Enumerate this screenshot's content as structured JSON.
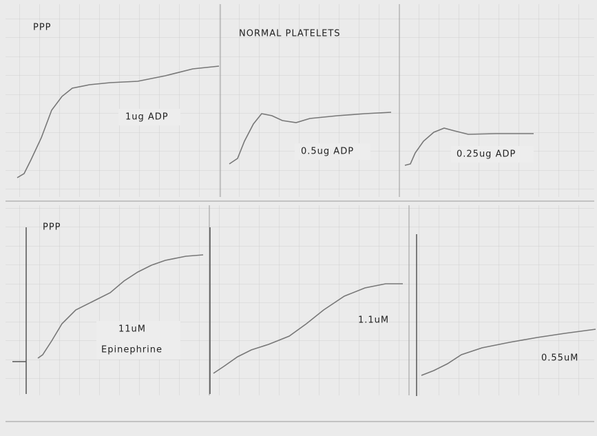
{
  "title": "NORMAL PLATELETS",
  "top_row": {
    "reference": "PPP",
    "labels": [
      "1ug ADP",
      "0.5ug ADP",
      "0.25ug ADP"
    ]
  },
  "bottom_row": {
    "reference": "PPP",
    "labels": [
      "11uM",
      "Epinephrine",
      "1.1uM",
      "0.55uM"
    ]
  }
}
